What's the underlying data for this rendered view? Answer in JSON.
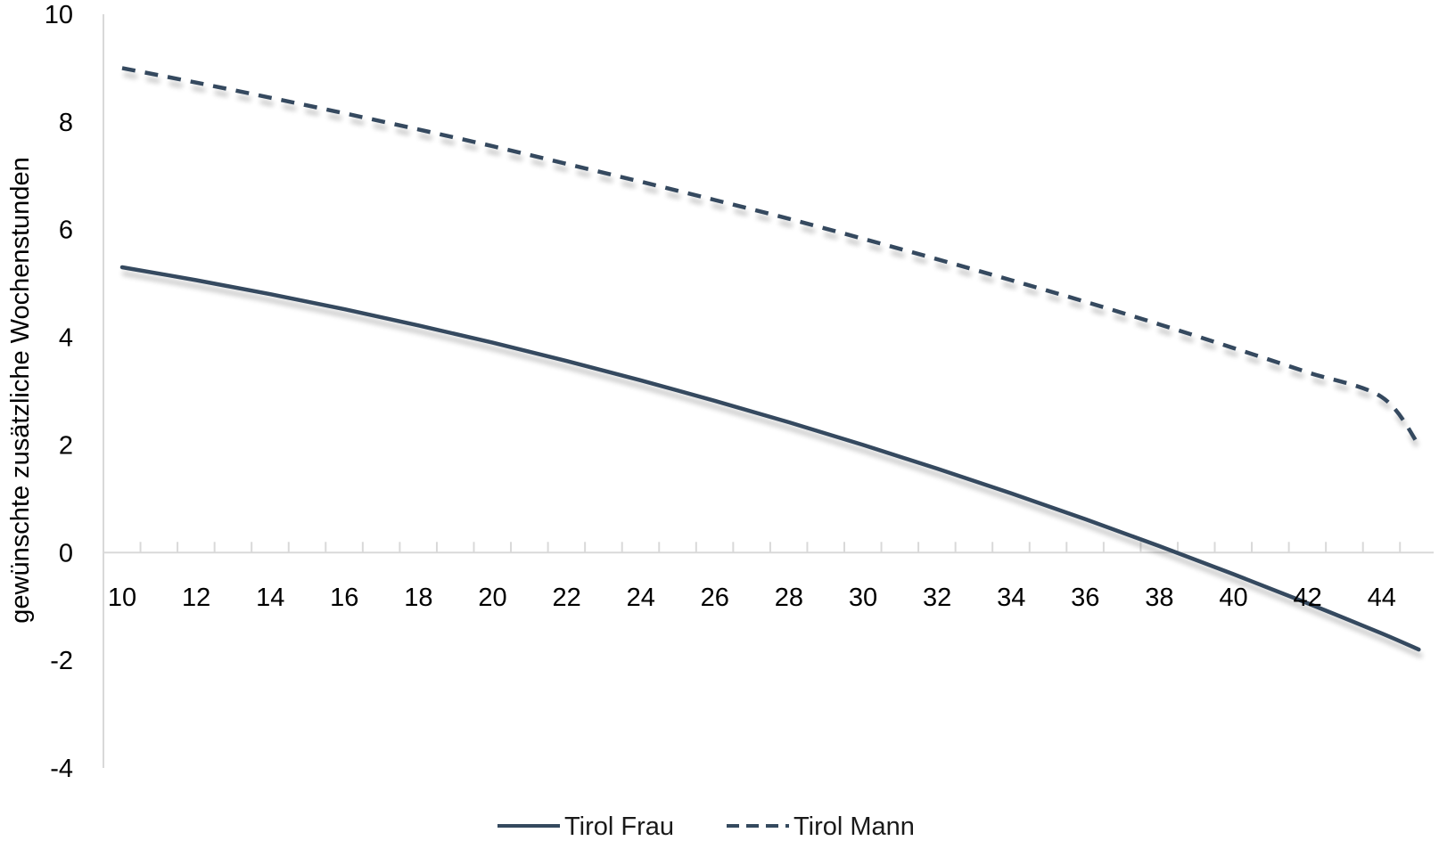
{
  "chart_data": {
    "type": "line",
    "title": "",
    "xlabel": "",
    "ylabel": "gewünschte zusätzliche Wochenstunden",
    "xlim": [
      10,
      45
    ],
    "ylim": [
      -4,
      10
    ],
    "x_ticks": [
      "10",
      "12",
      "14",
      "16",
      "18",
      "20",
      "22",
      "24",
      "26",
      "28",
      "30",
      "32",
      "34",
      "36",
      "38",
      "40",
      "42",
      "44"
    ],
    "y_ticks": [
      "-4",
      "-2",
      "0",
      "2",
      "4",
      "6",
      "8",
      "10"
    ],
    "grid": false,
    "legend_position": "bottom",
    "x": [
      10,
      12,
      14,
      16,
      18,
      20,
      22,
      24,
      26,
      28,
      30,
      32,
      34,
      36,
      38,
      40,
      42,
      44,
      45
    ],
    "series": [
      {
        "name": "Tirol Frau",
        "style": "solid",
        "color": "#34495e",
        "values": [
          5.3,
          5.06,
          4.8,
          4.52,
          4.22,
          3.9,
          3.56,
          3.2,
          2.82,
          2.42,
          2.0,
          1.56,
          1.1,
          0.62,
          0.12,
          -0.4,
          -0.94,
          -1.5,
          -1.8
        ]
      },
      {
        "name": "Tirol Mann",
        "style": "dashed",
        "color": "#34495e",
        "values": [
          9.0,
          8.73,
          8.45,
          8.16,
          7.86,
          7.55,
          7.22,
          6.89,
          6.55,
          6.2,
          5.83,
          5.45,
          5.06,
          4.66,
          4.24,
          3.8,
          3.35,
          2.89,
          2.0
        ]
      }
    ]
  },
  "colors": {
    "axis": "#d9d9d9",
    "series": "#34495e",
    "shadow": "#000000"
  },
  "legend": {
    "items": [
      {
        "label": "Tirol Frau",
        "style": "solid"
      },
      {
        "label": "Tirol Mann",
        "style": "dashed"
      }
    ]
  }
}
